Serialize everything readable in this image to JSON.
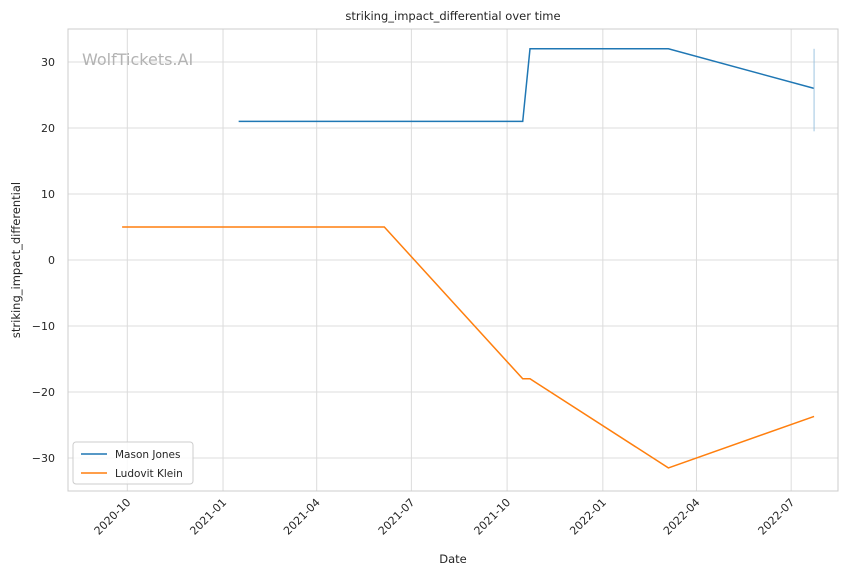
{
  "chart_data": {
    "type": "line",
    "title": "striking_impact_differential over time",
    "xlabel": "Date",
    "ylabel": "striking_impact_differential",
    "watermark": "WolfTickets.AI",
    "x_ticks": [
      "2020-10",
      "2021-01",
      "2021-04",
      "2021-07",
      "2021-10",
      "2022-01",
      "2022-04",
      "2022-07"
    ],
    "y_ticks": [
      -30,
      -20,
      -10,
      0,
      10,
      20,
      30
    ],
    "xlim": [
      "2020-08-05",
      "2022-08-15"
    ],
    "ylim": [
      -35,
      35
    ],
    "grid": true,
    "legend_position": "lower-left",
    "series": [
      {
        "name": "Mason Jones",
        "color": "#1f77b4",
        "points": [
          {
            "x": "2021-01-16",
            "y": 21
          },
          {
            "x": "2021-10-16",
            "y": 21
          },
          {
            "x": "2021-10-23",
            "y": 32
          },
          {
            "x": "2022-03-05",
            "y": 32
          },
          {
            "x": "2022-07-23",
            "y": 26
          }
        ]
      },
      {
        "name": "Ludovit Klein",
        "color": "#ff7f0e",
        "points": [
          {
            "x": "2020-09-26",
            "y": 5
          },
          {
            "x": "2021-06-05",
            "y": 5
          },
          {
            "x": "2021-10-16",
            "y": -18
          },
          {
            "x": "2021-10-23",
            "y": -18
          },
          {
            "x": "2022-03-05",
            "y": -31.5
          },
          {
            "x": "2022-07-23",
            "y": -23.7
          }
        ]
      }
    ]
  }
}
